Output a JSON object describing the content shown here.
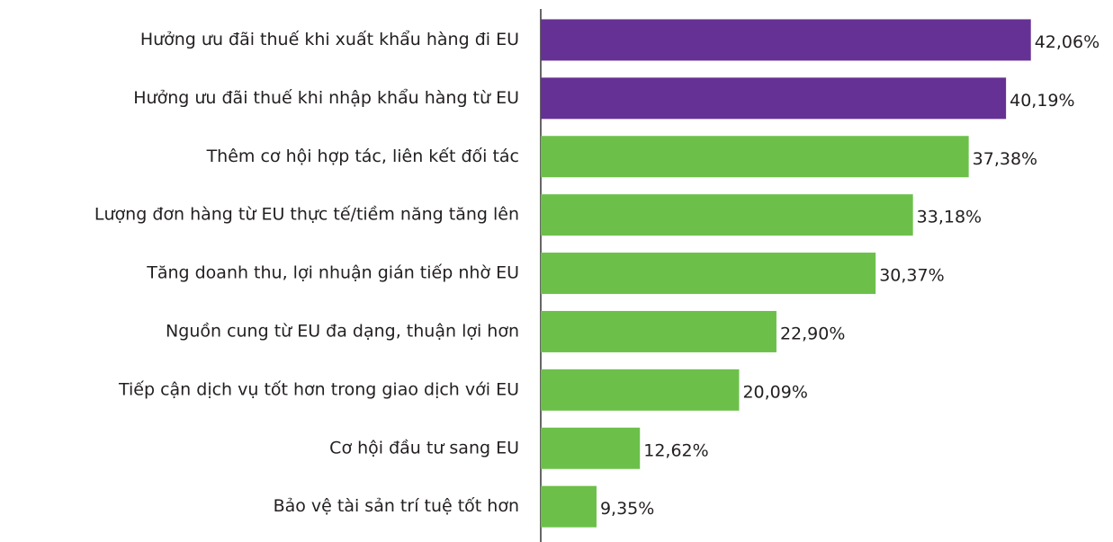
{
  "chart_data": {
    "type": "bar",
    "orientation": "horizontal",
    "categories": [
      "Hưởng ưu đãi thuế khi xuất khẩu hàng đi EU",
      "Hưởng ưu đãi thuế khi nhập khẩu hàng từ EU",
      "Thêm cơ hội hợp tác, liên kết đối tác",
      "Lượng đơn hàng từ EU thực tế/tiềm năng tăng lên",
      "Tăng doanh thu, lợi nhuận gián tiếp nhờ EU",
      "Nguồn cung từ EU đa dạng, thuận lợi hơn",
      "Tiếp cận dịch vụ tốt hơn trong giao dịch với EU",
      "Cơ hội đầu tư sang EU",
      "Bảo vệ tài sản trí tuệ tốt hơn"
    ],
    "values": [
      42.06,
      40.19,
      37.38,
      33.18,
      30.37,
      22.9,
      20.09,
      12.62,
      9.35
    ],
    "value_labels": [
      "42,06%",
      "40,19%",
      "37,38%",
      "33,18%",
      "30,37%",
      "22,90%",
      "20,09%",
      "12,62%",
      "9,35%"
    ],
    "colors": [
      "#663194",
      "#663194",
      "#6cc04a",
      "#6cc04a",
      "#6cc04a",
      "#6cc04a",
      "#6cc04a",
      "#6cc04a",
      "#6cc04a"
    ],
    "xlim": [
      5.15,
      47.5
    ]
  }
}
